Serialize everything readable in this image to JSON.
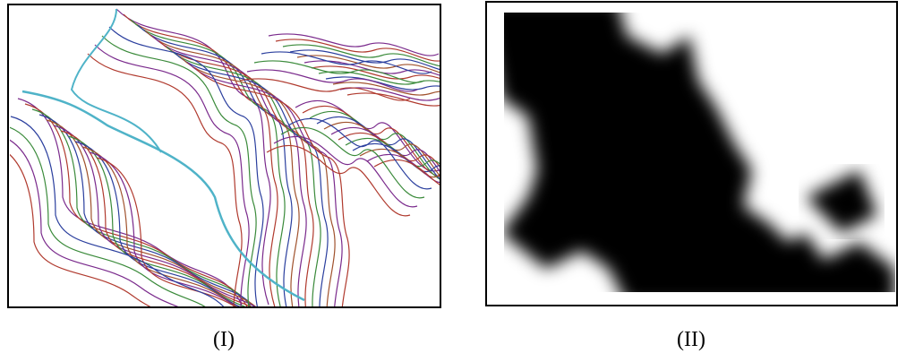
{
  "panels": [
    {
      "label": "(I)"
    },
    {
      "label": "(II)"
    }
  ]
}
